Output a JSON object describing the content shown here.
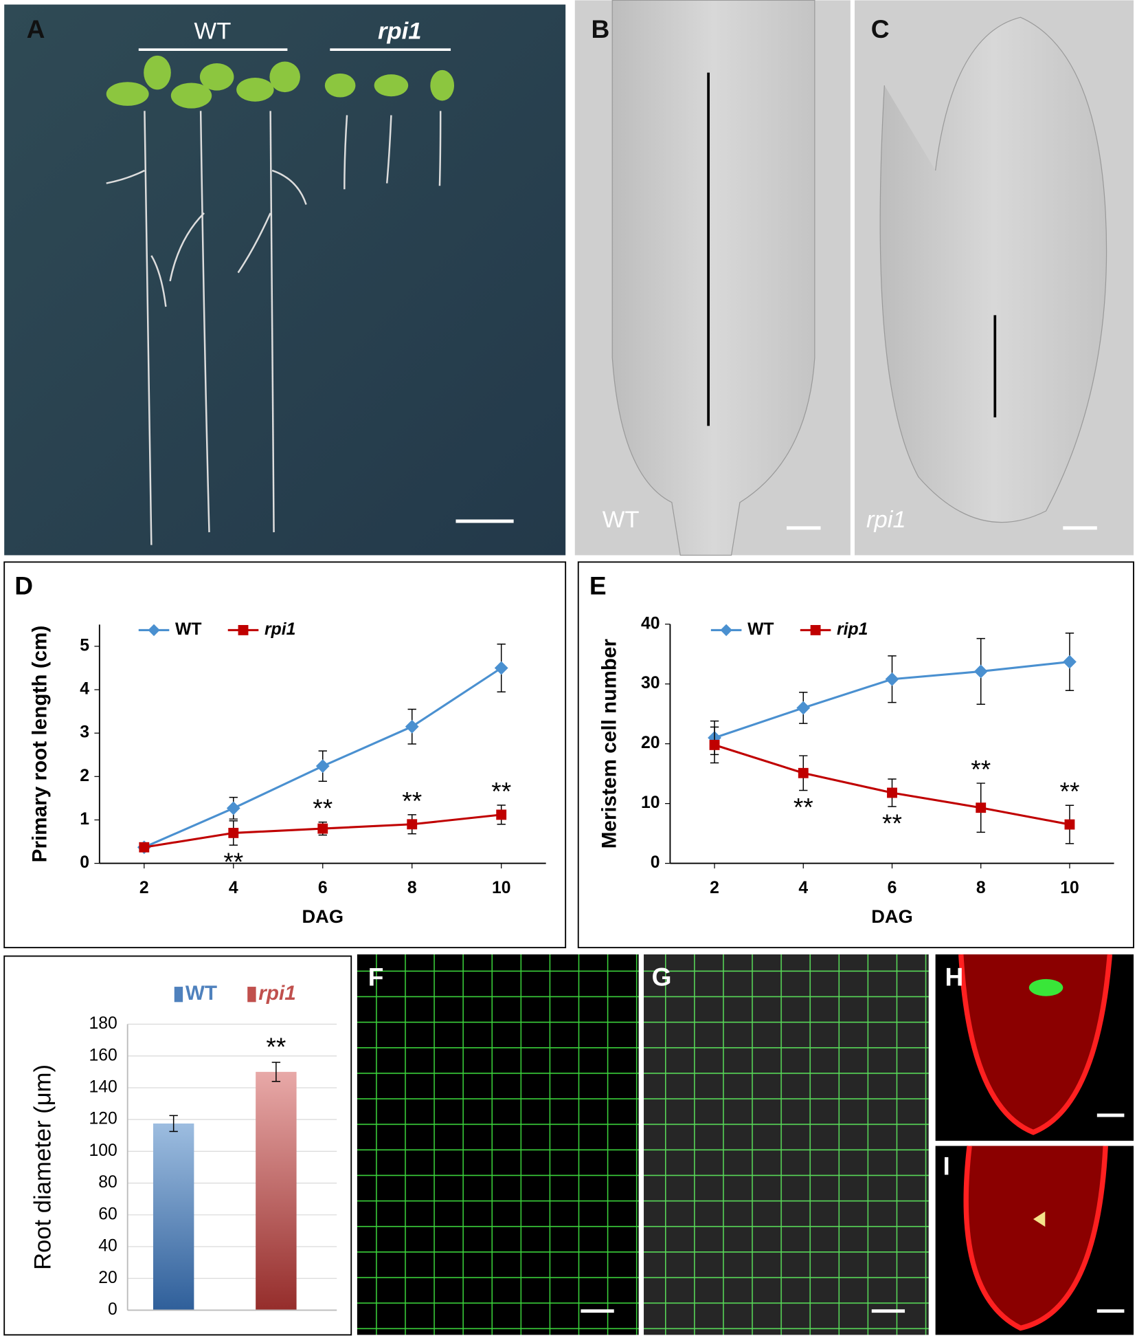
{
  "panels": {
    "a": "A",
    "a_wt": "WT",
    "a_mut": "rpi1",
    "b": "B",
    "b_wt": "WT",
    "c": "C",
    "c_mut": "rpi1",
    "f": "F",
    "g": "G",
    "h": "H",
    "i": "I"
  },
  "chart_data": [
    {
      "type": "line",
      "ylabel": "Primary root length (cm)",
      "xlabel": "DAG",
      "x": [
        2,
        4,
        6,
        8,
        10
      ],
      "xlim": [
        1,
        11
      ],
      "xticks": [
        2,
        4,
        6,
        8,
        10
      ],
      "ylim": [
        0,
        5.5
      ],
      "yticks": [
        0,
        1,
        2,
        3,
        4,
        5
      ],
      "legend": "top",
      "series": [
        {
          "name": "WT",
          "color": "#4a90d0",
          "marker": "diamond",
          "values": [
            0.37,
            1.27,
            2.24,
            3.15,
            4.5
          ],
          "errors": [
            0.1,
            0.25,
            0.35,
            0.4,
            0.55
          ]
        },
        {
          "name": "rpi1",
          "italic": true,
          "color": "#c00000",
          "marker": "square",
          "values": [
            0.37,
            0.7,
            0.8,
            0.9,
            1.12
          ],
          "errors": [
            0.08,
            0.28,
            0.15,
            0.22,
            0.22
          ]
        }
      ],
      "annotations": [
        {
          "text": "**",
          "series": 1,
          "x": 4,
          "position": "below"
        },
        {
          "text": "**",
          "series": 1,
          "x": 6,
          "position": "above"
        },
        {
          "text": "**",
          "series": 1,
          "x": 8,
          "position": "above"
        },
        {
          "text": "**",
          "series": 1,
          "x": 10,
          "position": "above"
        }
      ]
    },
    {
      "type": "line",
      "ylabel": "Meristem cell number",
      "xlabel": "DAG",
      "x": [
        2,
        4,
        6,
        8,
        10
      ],
      "xlim": [
        1,
        11
      ],
      "xticks": [
        2,
        4,
        6,
        8,
        10
      ],
      "ylim": [
        0,
        40
      ],
      "yticks": [
        0,
        10,
        20,
        30,
        40
      ],
      "legend": "top",
      "series": [
        {
          "name": "WT",
          "color": "#4a90d0",
          "marker": "diamond",
          "values": [
            21,
            26,
            30.8,
            32.1,
            33.7
          ],
          "errors": [
            2.8,
            2.6,
            3.9,
            5.5,
            4.8
          ]
        },
        {
          "name": "rip1",
          "italic": true,
          "color": "#c00000",
          "marker": "square",
          "values": [
            19.8,
            15.1,
            11.8,
            9.3,
            6.5
          ],
          "errors": [
            3,
            2.9,
            2.3,
            4.1,
            3.2
          ]
        }
      ],
      "annotations": [
        {
          "text": "**",
          "series": 1,
          "x": 4,
          "position": "below"
        },
        {
          "text": "**",
          "series": 1,
          "x": 6,
          "position": "below"
        },
        {
          "text": "**",
          "series": 1,
          "x": 8,
          "position": "above"
        },
        {
          "text": "**",
          "series": 1,
          "x": 10,
          "position": "above"
        }
      ]
    },
    {
      "type": "bar",
      "ylabel": "Root diameter (μm)",
      "categories": [
        null
      ],
      "ylim": [
        0,
        180
      ],
      "yticks": [
        0,
        20,
        40,
        60,
        80,
        100,
        120,
        140,
        160,
        180
      ],
      "grid": true,
      "legend": "top",
      "series": [
        {
          "name": "WT",
          "color": "#4f81bd",
          "values": [
            117.5
          ],
          "errors": [
            5
          ]
        },
        {
          "name": "rpi1",
          "italic": true,
          "color": "#c0504d",
          "values": [
            150
          ],
          "errors": [
            6
          ]
        }
      ],
      "annotations": [
        {
          "text": "**",
          "series": 1,
          "position": "above"
        }
      ]
    }
  ]
}
